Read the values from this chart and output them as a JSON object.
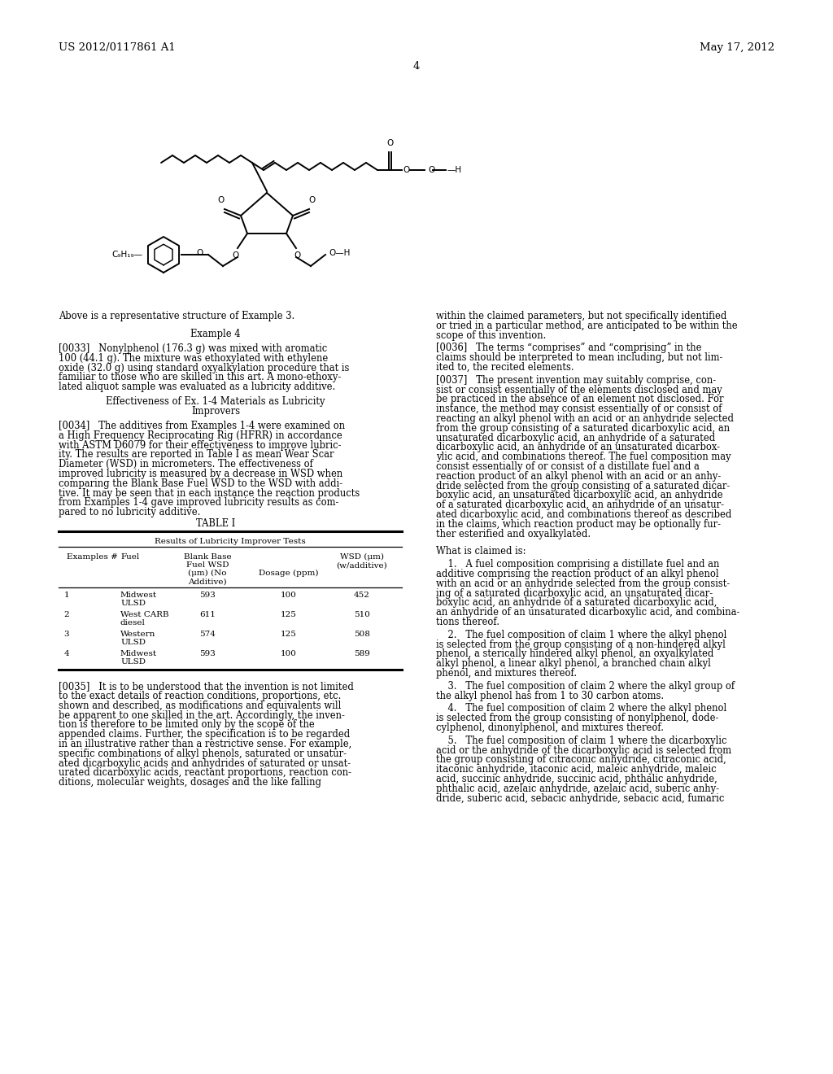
{
  "background_color": "#ffffff",
  "page_number": "4",
  "header_left": "US 2012/0117861 A1",
  "header_right": "May 17, 2012",
  "chemical_structure_note": "Above is a representative structure of Example 3.",
  "example4_heading": "Example 4",
  "table_title": "TABLE I",
  "table_subtitle": "Results of Lubricity Improver Tests",
  "table_col_headers": [
    "Examples #",
    "Fuel",
    "Blank Base\nFuel WSD\n(μm) (No\nAdditive)",
    "Dosage (ppm)",
    "WSD (μm)\n(w/additive)"
  ],
  "table_rows": [
    [
      "1",
      "Midwest\nULSD",
      "593",
      "100",
      "452"
    ],
    [
      "2",
      "West CARB\ndiesel",
      "611",
      "125",
      "510"
    ],
    [
      "3",
      "Western\nULSD",
      "574",
      "125",
      "508"
    ],
    [
      "4",
      "Midwest\nULSD",
      "593",
      "100",
      "589"
    ]
  ]
}
